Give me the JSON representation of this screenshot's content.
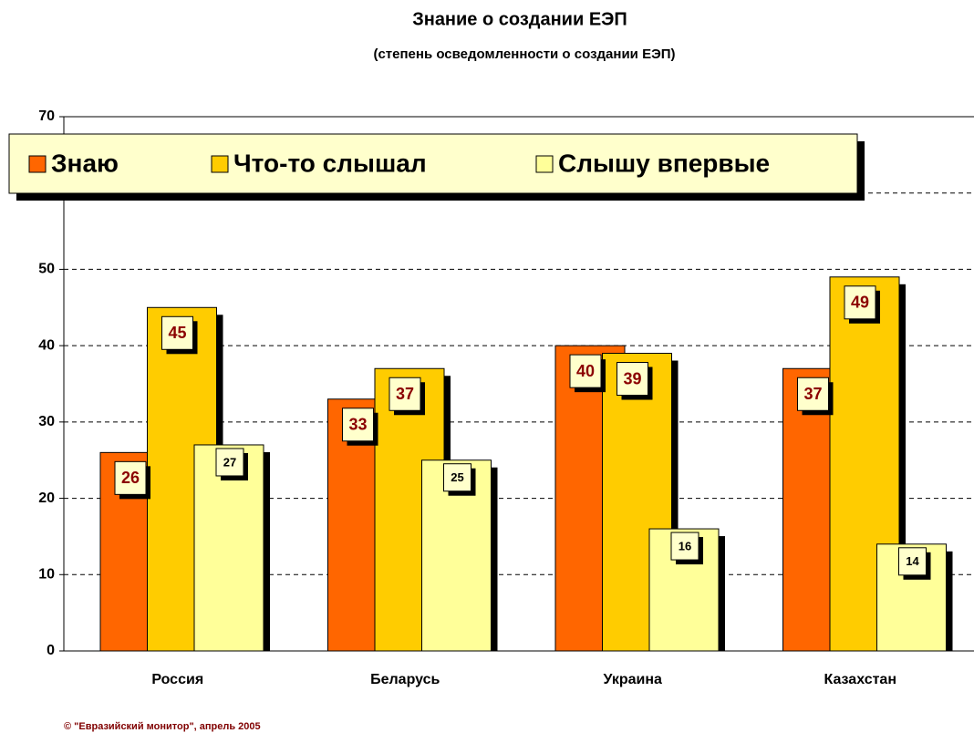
{
  "chart_data": {
    "type": "bar",
    "title": "Знание о создании ЕЭП",
    "subtitle": "(степень осведомленности о создании ЕЭП)",
    "footer": "© \"Евразийский монитор\", апрель 2005",
    "categories": [
      "Россия",
      "Беларусь",
      "Украина",
      "Казахстан"
    ],
    "series": [
      {
        "name": "Знаю",
        "color": "#ff6600",
        "values": [
          26,
          33,
          40,
          37
        ]
      },
      {
        "name": "Что-то слышал",
        "color": "#ffcc00",
        "values": [
          45,
          37,
          39,
          49
        ]
      },
      {
        "name": "Слышу впервые",
        "color": "#ffff99",
        "values": [
          27,
          25,
          16,
          14
        ]
      }
    ],
    "ylim": [
      0,
      70
    ],
    "yticks": [
      0,
      10,
      20,
      30,
      40,
      50,
      60,
      70
    ],
    "grid": true
  }
}
